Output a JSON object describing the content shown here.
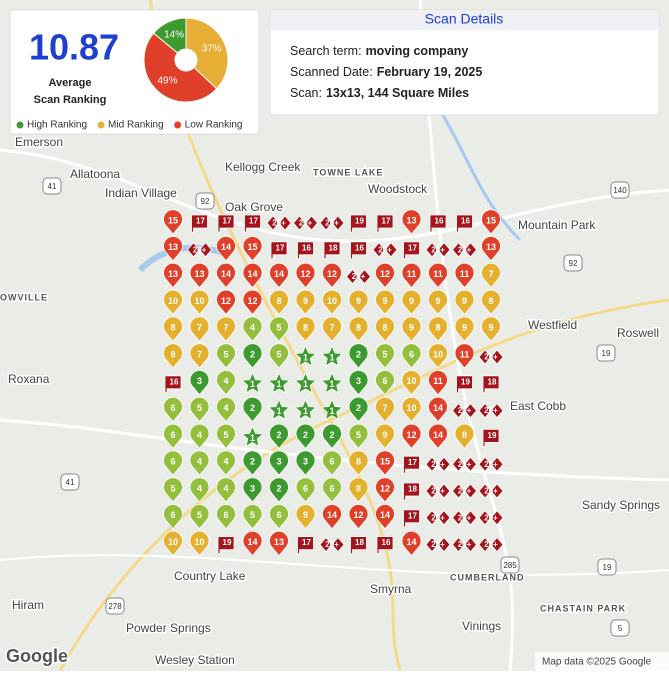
{
  "summary": {
    "average": "10.87",
    "average_label_1": "Average",
    "average_label_2": "Scan Ranking",
    "distribution": [
      {
        "name": "High Ranking",
        "value": 14,
        "label": "14%",
        "color": "#3d9a2f"
      },
      {
        "name": "Mid Ranking",
        "value": 37,
        "label": "37%",
        "color": "#e6ae35"
      },
      {
        "name": "Low Ranking",
        "value": 49,
        "label": "49%",
        "color": "#e0402a"
      }
    ]
  },
  "details": {
    "title": "Scan Details",
    "rows": [
      [
        "Search term:",
        "moving company"
      ],
      [
        "Scanned Date:",
        "February 19, 2025"
      ],
      [
        "Scan:",
        "13x13, 144 Square Miles"
      ]
    ]
  },
  "grid": {
    "rows": [
      [
        15,
        17,
        17,
        17,
        "20+",
        "20+",
        "20+",
        19,
        17,
        13,
        16,
        16,
        15
      ],
      [
        13,
        "20+",
        14,
        15,
        17,
        16,
        18,
        16,
        "20+",
        17,
        "20+",
        "20+",
        13
      ],
      [
        13,
        13,
        14,
        14,
        14,
        12,
        12,
        "20+",
        12,
        11,
        11,
        11,
        7
      ],
      [
        10,
        10,
        12,
        12,
        8,
        9,
        10,
        9,
        9,
        9,
        9,
        9,
        8
      ],
      [
        8,
        7,
        7,
        4,
        5,
        8,
        7,
        8,
        8,
        9,
        8,
        9,
        9
      ],
      [
        8,
        7,
        5,
        2,
        5,
        1,
        1,
        2,
        5,
        6,
        10,
        11,
        "20+"
      ],
      [
        16,
        3,
        4,
        1,
        1,
        1,
        1,
        3,
        6,
        10,
        11,
        19,
        18
      ],
      [
        6,
        5,
        4,
        2,
        1,
        1,
        1,
        2,
        7,
        10,
        14,
        "20+",
        "20+"
      ],
      [
        6,
        4,
        5,
        1,
        2,
        2,
        2,
        5,
        9,
        12,
        14,
        8,
        19
      ],
      [
        6,
        4,
        4,
        2,
        3,
        3,
        6,
        8,
        15,
        17,
        "20+",
        "20+",
        "20+"
      ],
      [
        5,
        4,
        4,
        3,
        2,
        6,
        6,
        8,
        12,
        18,
        "20+",
        "20+",
        "20+"
      ],
      [
        6,
        5,
        6,
        5,
        6,
        9,
        14,
        12,
        14,
        17,
        "20+",
        "20+",
        "20+"
      ],
      [
        10,
        10,
        19,
        14,
        13,
        17,
        "20+",
        18,
        16,
        14,
        "20+",
        "20+",
        "20+"
      ]
    ]
  },
  "map": {
    "labels": [
      "Emerson",
      "Allatoona",
      "Indian Village",
      "Kellogg Creek",
      "TOWNE LAKE",
      "Woodstock",
      "Oak Grove",
      "Mountain Park",
      "Westfield",
      "Roswell",
      "Roxana",
      "East Cobb",
      "Sandy Springs",
      "Country Lake",
      "Smyrna",
      "CUMBERLAND",
      "Hiram",
      "Powder Springs",
      "Wesley Station",
      "Vinings",
      "CHASTAIN PARK",
      "OWVILLE"
    ],
    "shields": [
      "41",
      "92",
      "140",
      "92",
      "19",
      "278",
      "285",
      "19",
      "41",
      "5"
    ],
    "logo": "Google",
    "attribution": "Map data ©2025 Google"
  }
}
